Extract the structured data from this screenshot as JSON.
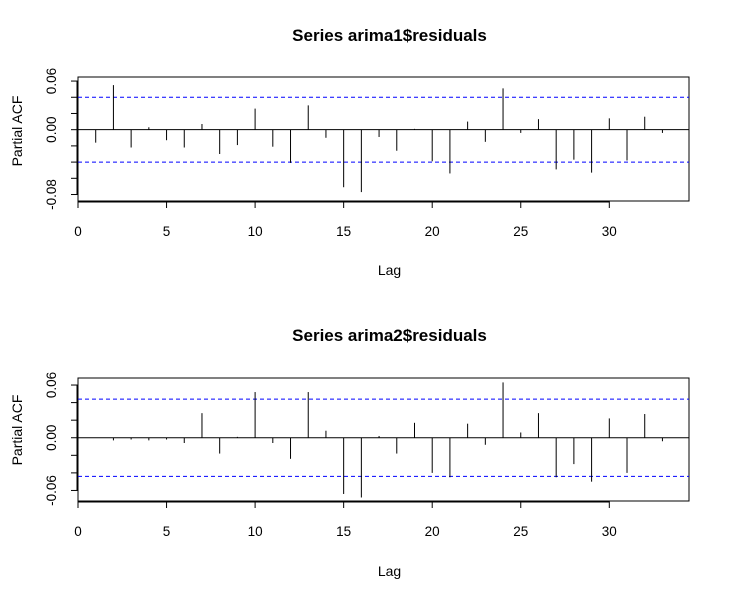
{
  "figure": {
    "background": "#ffffff"
  },
  "chart_data": [
    {
      "type": "bar",
      "title": "Series  arima1$residuals",
      "xlabel": "Lag",
      "ylabel": "Partial ACF",
      "xlim": [
        0,
        34.5
      ],
      "ylim": [
        -0.088,
        0.065
      ],
      "xticks": [
        0,
        5,
        10,
        15,
        20,
        25,
        30
      ],
      "yticks": [
        0.06,
        0.0,
        -0.08
      ],
      "yticks_minor": [
        0.06,
        0.04,
        0.02,
        0.0,
        -0.02,
        -0.04,
        -0.06,
        -0.08
      ],
      "ytick_labels": [
        "0.06",
        "0.00",
        "-0.08"
      ],
      "confidence_bounds": [
        0.04,
        -0.04
      ],
      "bound_color": "#0000ff",
      "bar_color": "#000000",
      "grid": false,
      "lags": [
        1,
        2,
        3,
        4,
        5,
        6,
        7,
        8,
        9,
        10,
        11,
        12,
        13,
        14,
        15,
        16,
        17,
        18,
        19,
        20,
        21,
        22,
        23,
        24,
        25,
        26,
        27,
        28,
        29,
        30,
        31,
        32,
        33
      ],
      "values": [
        -0.016,
        0.055,
        -0.022,
        0.003,
        -0.013,
        -0.022,
        0.007,
        -0.03,
        -0.019,
        0.026,
        -0.021,
        -0.041,
        0.03,
        -0.01,
        -0.071,
        -0.077,
        -0.009,
        -0.026,
        0.001,
        -0.039,
        -0.054,
        0.01,
        -0.015,
        0.051,
        -0.004,
        0.013,
        -0.049,
        -0.037,
        -0.053,
        0.014,
        -0.038,
        0.016,
        -0.004
      ]
    },
    {
      "type": "bar",
      "title": "Series  arima2$residuals",
      "xlabel": "Lag",
      "ylabel": "Partial ACF",
      "xlim": [
        0,
        34.5
      ],
      "ylim": [
        -0.072,
        0.068
      ],
      "xticks": [
        0,
        5,
        10,
        15,
        20,
        25,
        30
      ],
      "yticks": [
        0.06,
        0.0,
        -0.06
      ],
      "yticks_minor": [
        0.06,
        0.04,
        0.02,
        0.0,
        -0.02,
        -0.04,
        -0.06
      ],
      "ytick_labels": [
        "0.06",
        "0.00",
        "-0.06"
      ],
      "confidence_bounds": [
        0.044,
        -0.044
      ],
      "bound_color": "#0000ff",
      "bar_color": "#000000",
      "grid": false,
      "lags": [
        1,
        2,
        3,
        4,
        5,
        6,
        7,
        8,
        9,
        10,
        11,
        12,
        13,
        14,
        15,
        16,
        17,
        18,
        19,
        20,
        21,
        22,
        23,
        24,
        25,
        26,
        27,
        28,
        29,
        30,
        31,
        32,
        33
      ],
      "values": [
        0.0,
        -0.003,
        -0.002,
        -0.003,
        -0.002,
        -0.006,
        0.028,
        -0.018,
        0.001,
        0.052,
        -0.006,
        -0.024,
        0.052,
        0.008,
        -0.064,
        -0.068,
        0.002,
        -0.018,
        0.017,
        -0.04,
        -0.045,
        0.016,
        -0.008,
        0.063,
        0.006,
        0.028,
        -0.045,
        -0.03,
        -0.05,
        0.022,
        -0.04,
        0.027,
        -0.004
      ]
    }
  ]
}
